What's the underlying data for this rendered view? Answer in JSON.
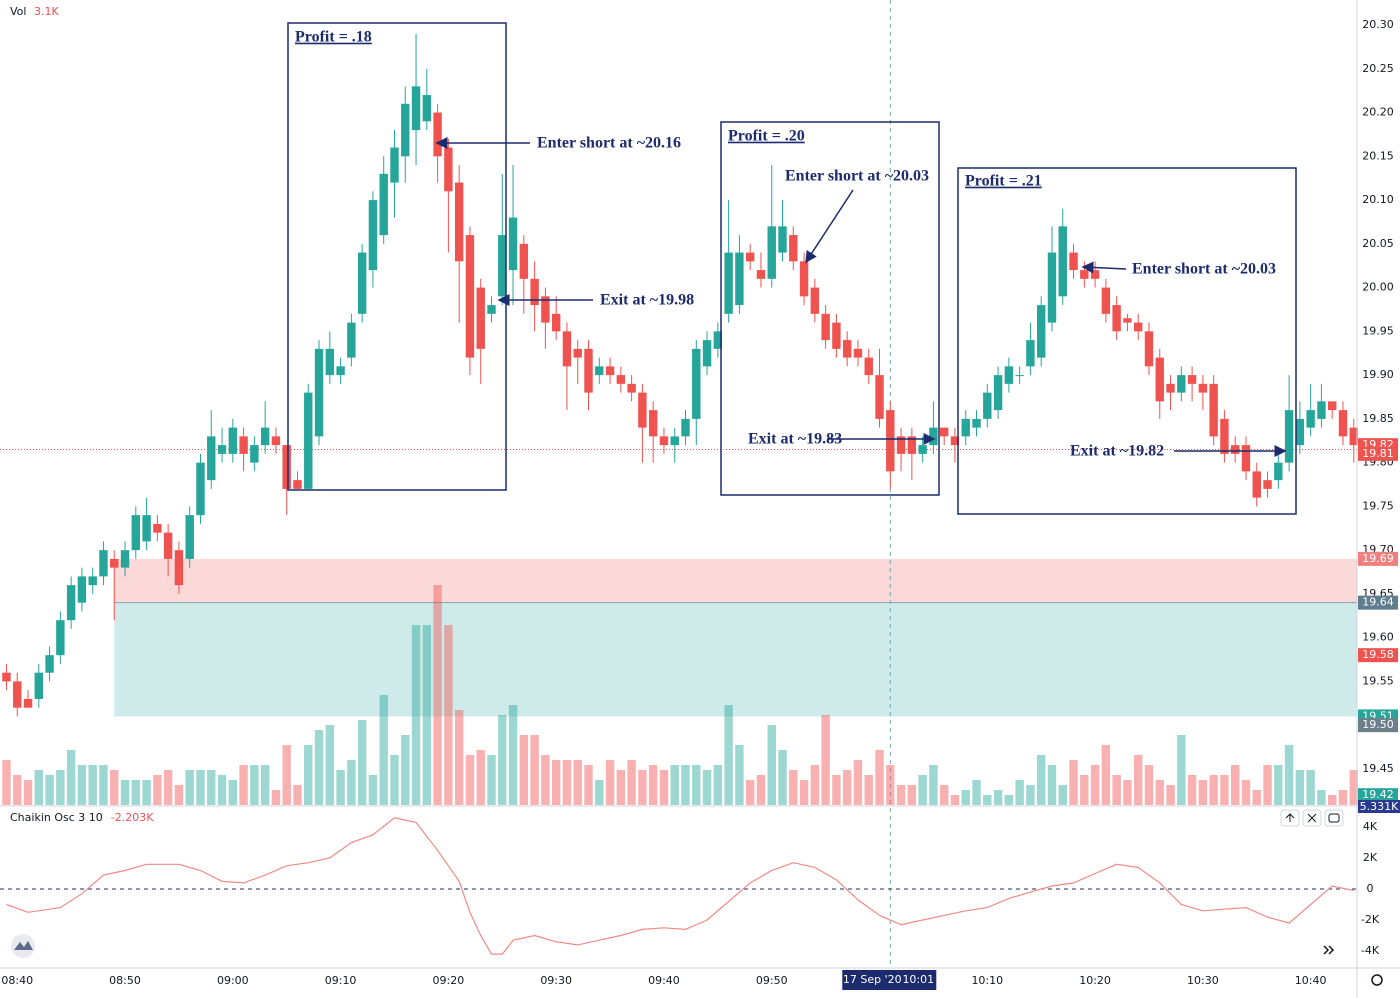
{
  "chart_data": {
    "type": "candlestick",
    "x": [
      519,
      520,
      521,
      522,
      523,
      524,
      525,
      526,
      527,
      528,
      529,
      530,
      531,
      532,
      533,
      534,
      535,
      536,
      537,
      538,
      539,
      540,
      541,
      542,
      543,
      544,
      545,
      546,
      547,
      548,
      549,
      550,
      551,
      552,
      553,
      554,
      555,
      556,
      557,
      558,
      559,
      560,
      561,
      562,
      563,
      564,
      565,
      566,
      567,
      568,
      569,
      570,
      571,
      572,
      573,
      574,
      575,
      576,
      577,
      578,
      579,
      580,
      581,
      582,
      583,
      584,
      585,
      586,
      587,
      588,
      589,
      590,
      591,
      592,
      593,
      594,
      595,
      596,
      597,
      598,
      599,
      600,
      601,
      602,
      603,
      604,
      605,
      606,
      607,
      608,
      609,
      610,
      611,
      612,
      613,
      614,
      615,
      616,
      617,
      618,
      619,
      620,
      621,
      622,
      623,
      624,
      625,
      626,
      627,
      628,
      629,
      630,
      631,
      632,
      633,
      634,
      635,
      636,
      637,
      638,
      639,
      640,
      641,
      642,
      643,
      644
    ],
    "open": [
      19.56,
      19.55,
      19.53,
      19.53,
      19.56,
      19.58,
      19.62,
      19.64,
      19.66,
      19.67,
      19.69,
      19.68,
      19.7,
      19.71,
      19.73,
      19.72,
      19.7,
      19.69,
      19.74,
      19.78,
      19.81,
      19.81,
      19.83,
      19.8,
      19.82,
      19.83,
      19.82,
      19.78,
      19.77,
      19.83,
      19.9,
      19.9,
      19.92,
      19.97,
      20.02,
      20.06,
      20.12,
      20.15,
      20.18,
      20.19,
      20.2,
      20.16,
      20.12,
      20.06,
      20.0,
      19.97,
      19.99,
      20.02,
      20.05,
      20.01,
      19.99,
      19.97,
      19.95,
      19.93,
      19.93,
      19.9,
      19.91,
      19.9,
      19.89,
      19.88,
      19.86,
      19.83,
      19.82,
      19.83,
      19.85,
      19.91,
      19.93,
      19.97,
      19.98,
      20.04,
      20.02,
      20.01,
      20.04,
      20.06,
      20.03,
      20.0,
      19.97,
      19.96,
      19.94,
      19.93,
      19.92,
      19.9,
      19.86,
      19.83,
      19.83,
      19.81,
      19.82,
      19.84,
      19.83,
      19.83,
      19.84,
      19.85,
      19.86,
      19.89,
      19.9,
      19.91,
      19.92,
      19.96,
      19.99,
      20.04,
      20.02,
      20.02,
      20.0,
      19.98,
      19.965,
      19.96,
      19.95,
      19.92,
      19.89,
      19.88,
      19.9,
      19.89,
      19.89,
      19.85,
      19.82,
      19.82,
      19.79,
      19.78,
      19.78,
      19.8,
      19.82,
      19.84,
      19.85,
      19.87,
      19.86,
      19.84
    ],
    "high": [
      19.57,
      19.56,
      19.54,
      19.57,
      19.59,
      19.63,
      19.67,
      19.68,
      19.68,
      19.71,
      19.7,
      19.71,
      19.75,
      19.76,
      19.74,
      19.73,
      19.71,
      19.75,
      19.81,
      19.86,
      19.84,
      19.85,
      19.84,
      19.83,
      19.87,
      19.84,
      19.82,
      19.79,
      19.89,
      19.94,
      19.95,
      19.92,
      19.97,
      20.05,
      20.11,
      20.15,
      20.18,
      20.23,
      20.29,
      20.25,
      20.21,
      20.17,
      20.14,
      20.07,
      20.01,
      19.99,
      20.13,
      20.14,
      20.06,
      20.03,
      20.0,
      19.99,
      19.96,
      19.94,
      19.94,
      19.92,
      19.92,
      19.91,
      19.9,
      19.89,
      19.87,
      19.84,
      19.84,
      19.86,
      19.94,
      19.95,
      19.96,
      20.1,
      20.06,
      20.05,
      20.04,
      20.14,
      20.1,
      20.07,
      20.04,
      20.01,
      19.98,
      19.97,
      19.95,
      19.94,
      19.93,
      19.93,
      19.87,
      19.84,
      19.84,
      19.83,
      19.87,
      19.84,
      19.84,
      19.86,
      19.86,
      19.89,
      19.91,
      19.92,
      19.91,
      19.96,
      19.99,
      20.07,
      20.09,
      20.05,
      20.03,
      20.03,
      20.01,
      19.99,
      19.97,
      19.97,
      19.96,
      19.93,
      19.9,
      19.91,
      19.91,
      19.9,
      19.9,
      19.86,
      19.83,
      19.83,
      19.8,
      19.79,
      19.81,
      19.9,
      19.87,
      19.89,
      19.89,
      19.87,
      19.87,
      19.85
    ],
    "low": [
      19.54,
      19.51,
      19.52,
      19.52,
      19.55,
      19.57,
      19.61,
      19.63,
      19.65,
      19.66,
      19.62,
      19.67,
      19.69,
      19.7,
      19.71,
      19.67,
      19.65,
      19.68,
      19.73,
      19.77,
      19.8,
      19.8,
      19.79,
      19.79,
      19.81,
      19.81,
      19.74,
      19.77,
      19.77,
      19.82,
      19.89,
      19.89,
      19.91,
      19.96,
      20.0,
      20.05,
      20.08,
      20.12,
      20.14,
      20.18,
      20.12,
      20.04,
      19.96,
      19.9,
      19.89,
      19.96,
      19.98,
      19.98,
      19.97,
      19.95,
      19.93,
      19.94,
      19.86,
      19.89,
      19.86,
      19.89,
      19.89,
      19.88,
      19.87,
      19.8,
      19.8,
      19.81,
      19.8,
      19.82,
      19.82,
      19.9,
      19.92,
      19.96,
      19.97,
      20.02,
      20.0,
      20.0,
      20.03,
      20.02,
      19.98,
      19.96,
      19.93,
      19.92,
      19.91,
      19.91,
      19.89,
      19.84,
      19.77,
      19.79,
      19.78,
      19.8,
      19.81,
      19.82,
      19.8,
      19.82,
      19.83,
      19.84,
      19.85,
      19.88,
      19.89,
      19.9,
      19.91,
      19.95,
      19.98,
      20.01,
      20.0,
      20.0,
      19.96,
      19.94,
      19.95,
      19.94,
      19.9,
      19.85,
      19.86,
      19.87,
      19.87,
      19.86,
      19.82,
      19.8,
      19.8,
      19.78,
      19.75,
      19.76,
      19.77,
      19.79,
      19.81,
      19.83,
      19.84,
      19.85,
      19.82,
      19.8
    ],
    "close": [
      19.55,
      19.52,
      19.52,
      19.56,
      19.58,
      19.62,
      19.66,
      19.67,
      19.67,
      19.7,
      19.68,
      19.7,
      19.74,
      19.74,
      19.72,
      19.69,
      19.66,
      19.74,
      19.8,
      19.83,
      19.82,
      19.84,
      19.81,
      19.82,
      19.84,
      19.82,
      19.77,
      19.77,
      19.88,
      19.93,
      19.93,
      19.91,
      19.96,
      20.04,
      20.1,
      20.13,
      20.16,
      20.21,
      20.23,
      20.22,
      20.15,
      20.11,
      20.03,
      19.92,
      19.93,
      19.98,
      20.06,
      20.08,
      20.01,
      19.98,
      19.96,
      19.95,
      19.91,
      19.92,
      19.88,
      19.91,
      19.9,
      19.89,
      19.88,
      19.84,
      19.83,
      19.82,
      19.83,
      19.85,
      19.93,
      19.94,
      19.95,
      20.04,
      20.04,
      20.03,
      20.01,
      20.07,
      20.07,
      20.03,
      19.99,
      19.97,
      19.94,
      19.93,
      19.92,
      19.92,
      19.9,
      19.85,
      19.79,
      19.81,
      19.81,
      19.82,
      19.84,
      19.83,
      19.82,
      19.85,
      19.85,
      19.88,
      19.9,
      19.91,
      19.9,
      19.94,
      19.98,
      20.04,
      20.07,
      20.02,
      20.01,
      20.01,
      19.97,
      19.95,
      19.96,
      19.95,
      19.91,
      19.87,
      19.88,
      19.9,
      19.89,
      19.88,
      19.83,
      19.81,
      19.81,
      19.79,
      19.76,
      19.77,
      19.8,
      19.86,
      19.85,
      19.86,
      19.87,
      19.86,
      19.83,
      19.82
    ],
    "volume": [
      4.5,
      3,
      2.5,
      3.5,
      3,
      3.5,
      5.5,
      4,
      4,
      4,
      3.5,
      2.5,
      2.5,
      2.5,
      3,
      3.5,
      2,
      3.5,
      3.5,
      3.5,
      3,
      2.5,
      4,
      4,
      4,
      1.5,
      6,
      2,
      6,
      7.5,
      8,
      3.5,
      4.5,
      8.5,
      3,
      11,
      5,
      7,
      18,
      18,
      22,
      18,
      9.5,
      5,
      5.5,
      5,
      9,
      10,
      7,
      7,
      5,
      4.5,
      4.5,
      4.5,
      4,
      2.5,
      4.5,
      3.5,
      4.5,
      3.5,
      4,
      3.5,
      4,
      4,
      4,
      3.5,
      4,
      10,
      6,
      2.5,
      3,
      8,
      5.5,
      3.5,
      2.5,
      4,
      9,
      3,
      3.5,
      4.5,
      3,
      5.5,
      4,
      2,
      2,
      3,
      4,
      2,
      1,
      1.5,
      2.5,
      1,
      1.5,
      1,
      2.5,
      2,
      5,
      4,
      2,
      4.5,
      3,
      4,
      6,
      3,
      2.5,
      5,
      4,
      2.5,
      2,
      7,
      3,
      2.5,
      3,
      3,
      4,
      2.5,
      1.5,
      4,
      4,
      6,
      3.5,
      3.5,
      1.5,
      1,
      1.5,
      3.5
    ],
    "up_color": "#26a69a",
    "down_color": "#ef5350",
    "xlim": [
      518.4,
      644.3
    ],
    "xticks": [
      {
        "value": 520,
        "label": "08:40"
      },
      {
        "value": 530,
        "label": "08:50"
      },
      {
        "value": 540,
        "label": "09:00"
      },
      {
        "value": 550,
        "label": "09:10"
      },
      {
        "value": 560,
        "label": "09:20"
      },
      {
        "value": 570,
        "label": "09:30"
      },
      {
        "value": 580,
        "label": "09:40"
      },
      {
        "value": 590,
        "label": "09:50"
      },
      {
        "value": 610,
        "label": "10:10"
      },
      {
        "value": 620,
        "label": "10:20"
      },
      {
        "value": 630,
        "label": "10:30"
      },
      {
        "value": 640,
        "label": "10:40"
      }
    ],
    "ylim": [
      19.4088,
      20.3286
    ],
    "yticks": [
      {
        "value": 20.3,
        "label": "20.30"
      },
      20.25,
      {
        "value": 20.2,
        "label": "20.20"
      },
      20.15,
      {
        "value": 20.1,
        "label": "20.10"
      },
      20.05,
      {
        "value": 20,
        "label": "20.00"
      },
      19.95,
      {
        "value": 19.9,
        "label": "19.90"
      },
      19.85,
      {
        "value": 19.8,
        "label": "19.80"
      },
      19.75,
      {
        "value": 19.7,
        "label": "19.70"
      },
      19.65,
      {
        "value": 19.6,
        "label": "19.60"
      },
      19.55,
      {
        "value": 19.5,
        "label": "19.50"
      },
      19.45
    ],
    "volume_label": "Vol",
    "volume_value": "3.1K",
    "volume_ylim": [
      0,
      25
    ],
    "price_line": 19.815,
    "price_tags": [
      {
        "value": 19.82,
        "color": "#ef5350"
      },
      {
        "value": 19.81,
        "color": "#ef5350"
      },
      {
        "value": 19.69,
        "color": "#f08080"
      },
      {
        "value": 19.64,
        "color": "#5f7d8c"
      },
      {
        "value": 19.58,
        "color": "#ef5350"
      },
      {
        "value": 19.51,
        "color": "#26a69a"
      },
      {
        "value": 19.5,
        "label": "19.50",
        "color": "#6d7f8a"
      },
      {
        "value": 19.42,
        "color": "#26a69a"
      }
    ],
    "zones": [
      {
        "from": 19.64,
        "to": 19.69,
        "start": 529,
        "color": "rgba(239,83,80,0.22)"
      },
      {
        "from": 19.51,
        "to": 19.64,
        "start": 529,
        "color": "rgba(38,166,154,0.22)"
      }
    ],
    "crosshair": {
      "x": 601,
      "date": "17 Sep '20",
      "time": "10:01"
    },
    "annotations": [
      "Profit = .18",
      "Enter short at ~20.16",
      "Exit at ~19.98",
      "Profit = .20",
      "Enter short at ~20.03",
      "Exit at ~19.83",
      "Profit = .21",
      "Enter short at ~20.03",
      "Exit at ~19.82"
    ],
    "oscillator": {
      "type": "line",
      "title": "Chaikin Osc 3 10",
      "value_label": "-2.203K",
      "scale_tag": "5.331K",
      "color": "#f08a84",
      "x": [
        519,
        521,
        524,
        526,
        528,
        530,
        532,
        535,
        537,
        539,
        541,
        543,
        545,
        547,
        549,
        551,
        553,
        555,
        557,
        559,
        561,
        562,
        563,
        564,
        565,
        566,
        568,
        570,
        572,
        574,
        576,
        578,
        580,
        582,
        584,
        586,
        588,
        590,
        592,
        594,
        596,
        598,
        600,
        602,
        604,
        606,
        608,
        610,
        612,
        614,
        616,
        618,
        620,
        622,
        624,
        626,
        628,
        630,
        632,
        634,
        636,
        638,
        640,
        642,
        644
      ],
      "values": [
        -1000,
        -1500,
        -1200,
        -300,
        900,
        1200,
        1600,
        1600,
        1200,
        500,
        400,
        900,
        1500,
        1700,
        2000,
        3000,
        3500,
        4600,
        4300,
        2500,
        500,
        -1500,
        -3000,
        -4200,
        -4200,
        -3300,
        -3000,
        -3400,
        -3600,
        -3300,
        -3000,
        -2600,
        -2500,
        -2600,
        -2000,
        -800,
        400,
        1200,
        1700,
        1400,
        600,
        -700,
        -1700,
        -2300,
        -2000,
        -1700,
        -1400,
        -1200,
        -600,
        -200,
        200,
        400,
        1000,
        1600,
        1400,
        400,
        -1000,
        -1400,
        -1300,
        -1200,
        -1800,
        -2200,
        -1000,
        200,
        -100
      ],
      "ylim": [
        -4900,
        5100
      ],
      "yticks": [
        {
          "value": 4000,
          "label": "4K"
        },
        {
          "value": 2000,
          "label": "2K"
        },
        0,
        {
          "value": -2000,
          "label": "-2K"
        },
        {
          "value": -4000,
          "label": "-4K"
        }
      ],
      "baseline": 0
    }
  }
}
